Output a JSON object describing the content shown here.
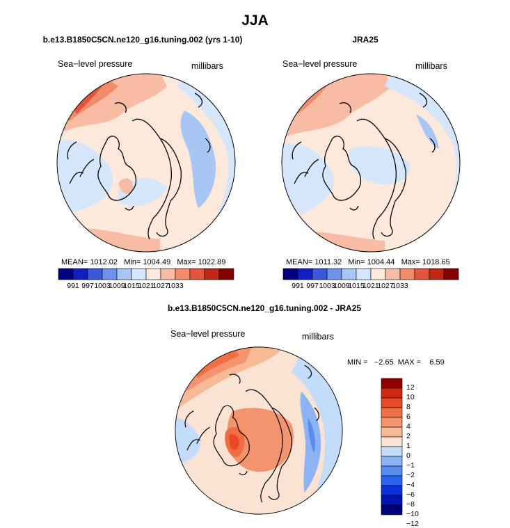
{
  "title": "JJA",
  "label_colors": [
    "#000080",
    "#0f1fc1",
    "#3a58d9",
    "#6d93e8",
    "#a7c6f3",
    "#d6e6fa",
    "#fde8dc",
    "#f8bca4",
    "#f08c6a",
    "#e0553b",
    "#c02515",
    "#850000"
  ],
  "diff_colors": [
    "#000078",
    "#0014b4",
    "#0a32dc",
    "#2864f0",
    "#5a8cf0",
    "#8cb4f5",
    "#c3dcfa",
    "#fbe3d4",
    "#f7b996",
    "#f4946e",
    "#f06e44",
    "#e84a28",
    "#d02814",
    "#8c0000"
  ],
  "panels": [
    {
      "title": "b.e13.B1850C5CN.ne120_g16.tuning.002 (yrs 1-10)",
      "left_label": "Sea−level pressure",
      "right_label": "millibars",
      "stats": {
        "mean_label": "MEAN=",
        "mean": "1012.02",
        "min_label": "Min=",
        "min": "1004.49",
        "max_label": "Max=",
        "max": "1022.89"
      },
      "colorbar_ticks": [
        "991",
        "997",
        "1003",
        "1009",
        "1015",
        "1021",
        "1027",
        "1033"
      ]
    },
    {
      "title": "JRA25",
      "left_label": "Sea−level pressure",
      "right_label": "millibars",
      "stats": {
        "mean_label": "MEAN=",
        "mean": "1011.32",
        "min_label": "Min=",
        "min": "1004.44",
        "max_label": "Max=",
        "max": "1018.65"
      },
      "colorbar_ticks": [
        "991",
        "997",
        "1003",
        "1009",
        "1015",
        "1021",
        "1027",
        "1033"
      ]
    }
  ],
  "diff_panel": {
    "title": "b.e13.B1850C5CN.ne120_g16.tuning.002 - JRA25",
    "left_label": "Sea−level pressure",
    "right_label": "millibars",
    "minmax": {
      "min_label": "MIN =",
      "min": "−2.65",
      "max_label": "MAX =",
      "max": "6.59"
    },
    "colorbar_ticks": [
      "12",
      "10",
      "8",
      "6",
      "4",
      "2",
      "1",
      "0",
      "−1",
      "−2",
      "−4",
      "−6",
      "−8",
      "−10",
      "−12"
    ]
  },
  "chart_data": [
    {
      "type": "heatmap",
      "title": "b.e13.B1850C5CN.ne120_g16.tuning.002 (yrs 1-10)",
      "variable": "Sea−level pressure",
      "units": "millibars",
      "mean": 1012.02,
      "min": 1004.49,
      "max": 1022.89,
      "levels": [
        991,
        997,
        1003,
        1009,
        1015,
        1021,
        1027,
        1033
      ]
    },
    {
      "type": "heatmap",
      "title": "JRA25",
      "variable": "Sea−level pressure",
      "units": "millibars",
      "mean": 1011.32,
      "min": 1004.44,
      "max": 1018.65,
      "levels": [
        991,
        997,
        1003,
        1009,
        1015,
        1021,
        1027,
        1033
      ]
    },
    {
      "type": "heatmap",
      "title": "b.e13.B1850C5CN.ne120_g16.tuning.002 - JRA25",
      "variable": "Sea−level pressure",
      "units": "millibars",
      "min": -2.65,
      "max": 6.59,
      "levels": [
        -12,
        -10,
        -8,
        -6,
        -4,
        -2,
        -1,
        0,
        1,
        2,
        4,
        6,
        8,
        10,
        12
      ]
    }
  ]
}
